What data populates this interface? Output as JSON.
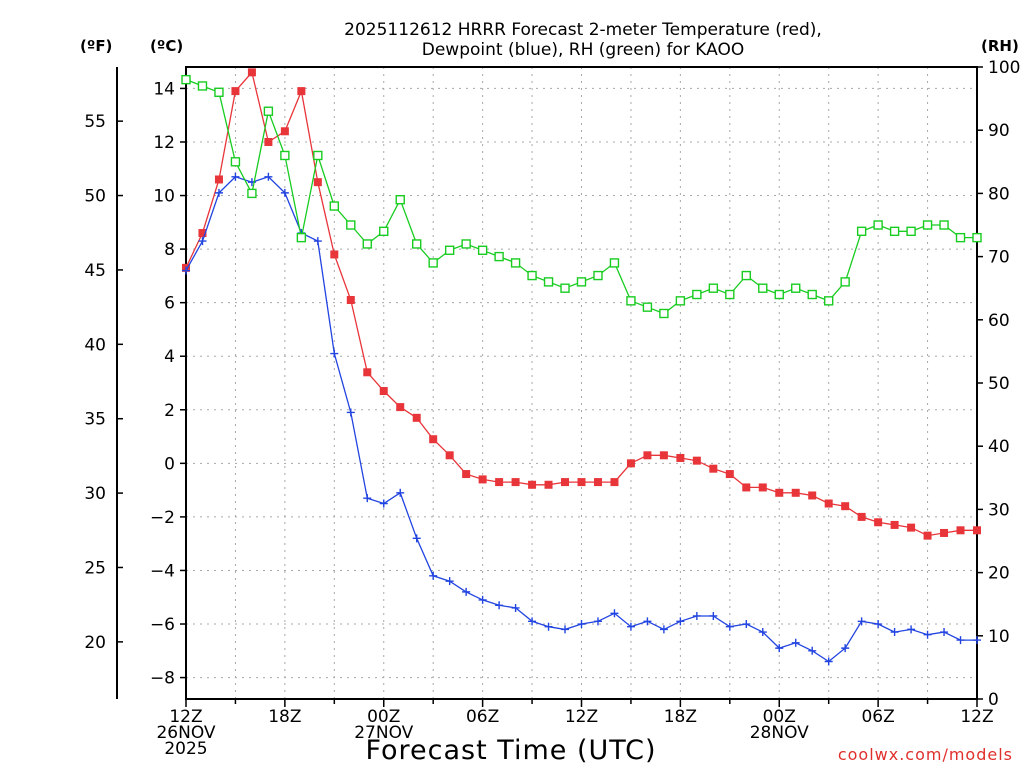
{
  "chart_data": {
    "type": "line",
    "title": [
      "2025112612 HRRR Forecast 2-meter Temperature (red),",
      "Dewpoint (blue), RH (green) for KAOO"
    ],
    "xlabel": "Forecast Time (UTC)",
    "units": {
      "fahrenheit": "(ºF)",
      "celsius": "(ºC)",
      "rh": "(RH)"
    },
    "x_tick_labels": [
      {
        "hour": 0,
        "label": [
          "12Z",
          "26NOV",
          "2025"
        ]
      },
      {
        "hour": 6,
        "label": [
          "18Z"
        ]
      },
      {
        "hour": 12,
        "label": [
          "00Z",
          "27NOV"
        ]
      },
      {
        "hour": 18,
        "label": [
          "06Z"
        ]
      },
      {
        "hour": 24,
        "label": [
          "12Z"
        ]
      },
      {
        "hour": 30,
        "label": [
          "18Z"
        ]
      },
      {
        "hour": 36,
        "label": [
          "00Z",
          "28NOV"
        ]
      },
      {
        "hour": 42,
        "label": [
          "06Z"
        ]
      },
      {
        "hour": 48,
        "label": [
          "12Z"
        ]
      }
    ],
    "xlim": [
      0,
      48
    ],
    "ylim_celsius": [
      -8.8,
      14.8
    ],
    "ylim_rh": [
      0,
      100
    ],
    "y_ticks_celsius": [
      "-8",
      "-6",
      "-4",
      "-2",
      "0",
      "2",
      "4",
      "6",
      "8",
      "10",
      "12",
      "14"
    ],
    "y_ticks_fahrenheit": [
      "20",
      "25",
      "30",
      "35",
      "40",
      "45",
      "50",
      "55"
    ],
    "y_ticks_rh": [
      "0",
      "10",
      "20",
      "30",
      "40",
      "50",
      "60",
      "70",
      "80",
      "90",
      "100"
    ],
    "series": [
      {
        "name": "2-meter Temperature",
        "units": "°C",
        "color": "#e8353a",
        "marker": "filled-square",
        "axis": "celsius",
        "values": [
          7.3,
          8.6,
          10.6,
          13.9,
          14.6,
          12.0,
          12.4,
          13.9,
          10.5,
          7.8,
          6.1,
          3.4,
          2.7,
          2.1,
          1.7,
          0.9,
          0.3,
          -0.4,
          -0.6,
          -0.7,
          -0.7,
          -0.8,
          -0.8,
          -0.7,
          -0.7,
          -0.7,
          -0.7,
          0.0,
          0.3,
          0.3,
          0.2,
          0.1,
          -0.2,
          -0.4,
          -0.9,
          -0.9,
          -1.1,
          -1.1,
          -1.2,
          -1.5,
          -1.6,
          -2.0,
          -2.2,
          -2.3,
          -2.4,
          -2.7,
          -2.6,
          -2.5,
          -2.5
        ]
      },
      {
        "name": "Dewpoint",
        "units": "°C",
        "color": "#2244e0",
        "marker": "plus",
        "axis": "celsius",
        "values": [
          7.2,
          8.3,
          10.1,
          10.7,
          10.5,
          10.7,
          10.1,
          8.6,
          8.3,
          4.1,
          1.9,
          -1.3,
          -1.5,
          -1.1,
          -2.8,
          -4.2,
          -4.4,
          -4.8,
          -5.1,
          -5.3,
          -5.4,
          -5.9,
          -6.1,
          -6.2,
          -6.0,
          -5.9,
          -5.6,
          -6.1,
          -5.9,
          -6.2,
          -5.9,
          -5.7,
          -5.7,
          -6.1,
          -6.0,
          -6.3,
          -6.9,
          -6.7,
          -7.0,
          -7.4,
          -6.9,
          -5.9,
          -6.0,
          -6.3,
          -6.2,
          -6.4,
          -6.3,
          -6.6,
          -6.6
        ]
      },
      {
        "name": "RH",
        "units": "%",
        "color": "#18cc20",
        "marker": "open-square",
        "axis": "rh",
        "values": [
          98,
          97,
          96,
          85,
          80,
          93,
          86,
          73,
          86,
          78,
          75,
          72,
          74,
          79,
          72,
          69,
          71,
          72,
          71,
          70,
          69,
          67,
          66,
          65,
          66,
          67,
          69,
          63,
          62,
          61,
          63,
          64,
          65,
          64,
          67,
          65,
          64,
          65,
          64,
          63,
          66,
          74,
          75,
          74,
          74,
          75,
          75,
          73,
          73
        ]
      }
    ]
  },
  "credit": "coolwx.com/models"
}
